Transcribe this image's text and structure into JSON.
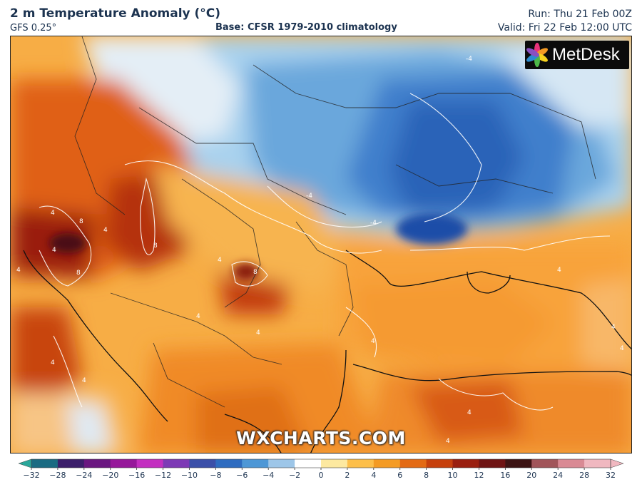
{
  "header": {
    "title": "2 m Temperature Anomaly (°C)",
    "model": "GFS 0.25°",
    "base": "Base: CFSR 1979-2010 climatology",
    "run": "Run: Thu 21 Feb 00Z",
    "valid": "Valid: Fri 22 Feb 12:00 UTC"
  },
  "logo": {
    "text": "MetDesk",
    "icon": "metdesk-flower-logo"
  },
  "watermark": "WXCHARTS.COM",
  "contour_labels": [
    "4",
    "4",
    "4",
    "4",
    "8",
    "8",
    "8",
    "8",
    "4",
    "4",
    "-4",
    "-4",
    "-4",
    "4",
    "4",
    "4",
    "4",
    "4",
    "4",
    "4",
    "4",
    "4"
  ],
  "colorbar": {
    "ticks": [
      "−32",
      "−28",
      "−24",
      "−20",
      "−16",
      "−12",
      "−10",
      "−8",
      "−6",
      "−4",
      "−2",
      "0",
      "2",
      "4",
      "6",
      "8",
      "10",
      "12",
      "16",
      "20",
      "24",
      "28",
      "32"
    ],
    "colors": [
      "#2aa79b",
      "#1a6b82",
      "#3c1f6b",
      "#6a1780",
      "#96189a",
      "#c32fc0",
      "#7d3ab5",
      "#3b4fa8",
      "#2e6cc0",
      "#4d97d6",
      "#9dc6e8",
      "#ffffff",
      "#fde9a0",
      "#fdbf4a",
      "#f49b24",
      "#e36a14",
      "#c6400d",
      "#9a1f10",
      "#6f1414",
      "#3d1414",
      "#a1555a",
      "#d98a94",
      "#f0b8c0"
    ]
  }
}
